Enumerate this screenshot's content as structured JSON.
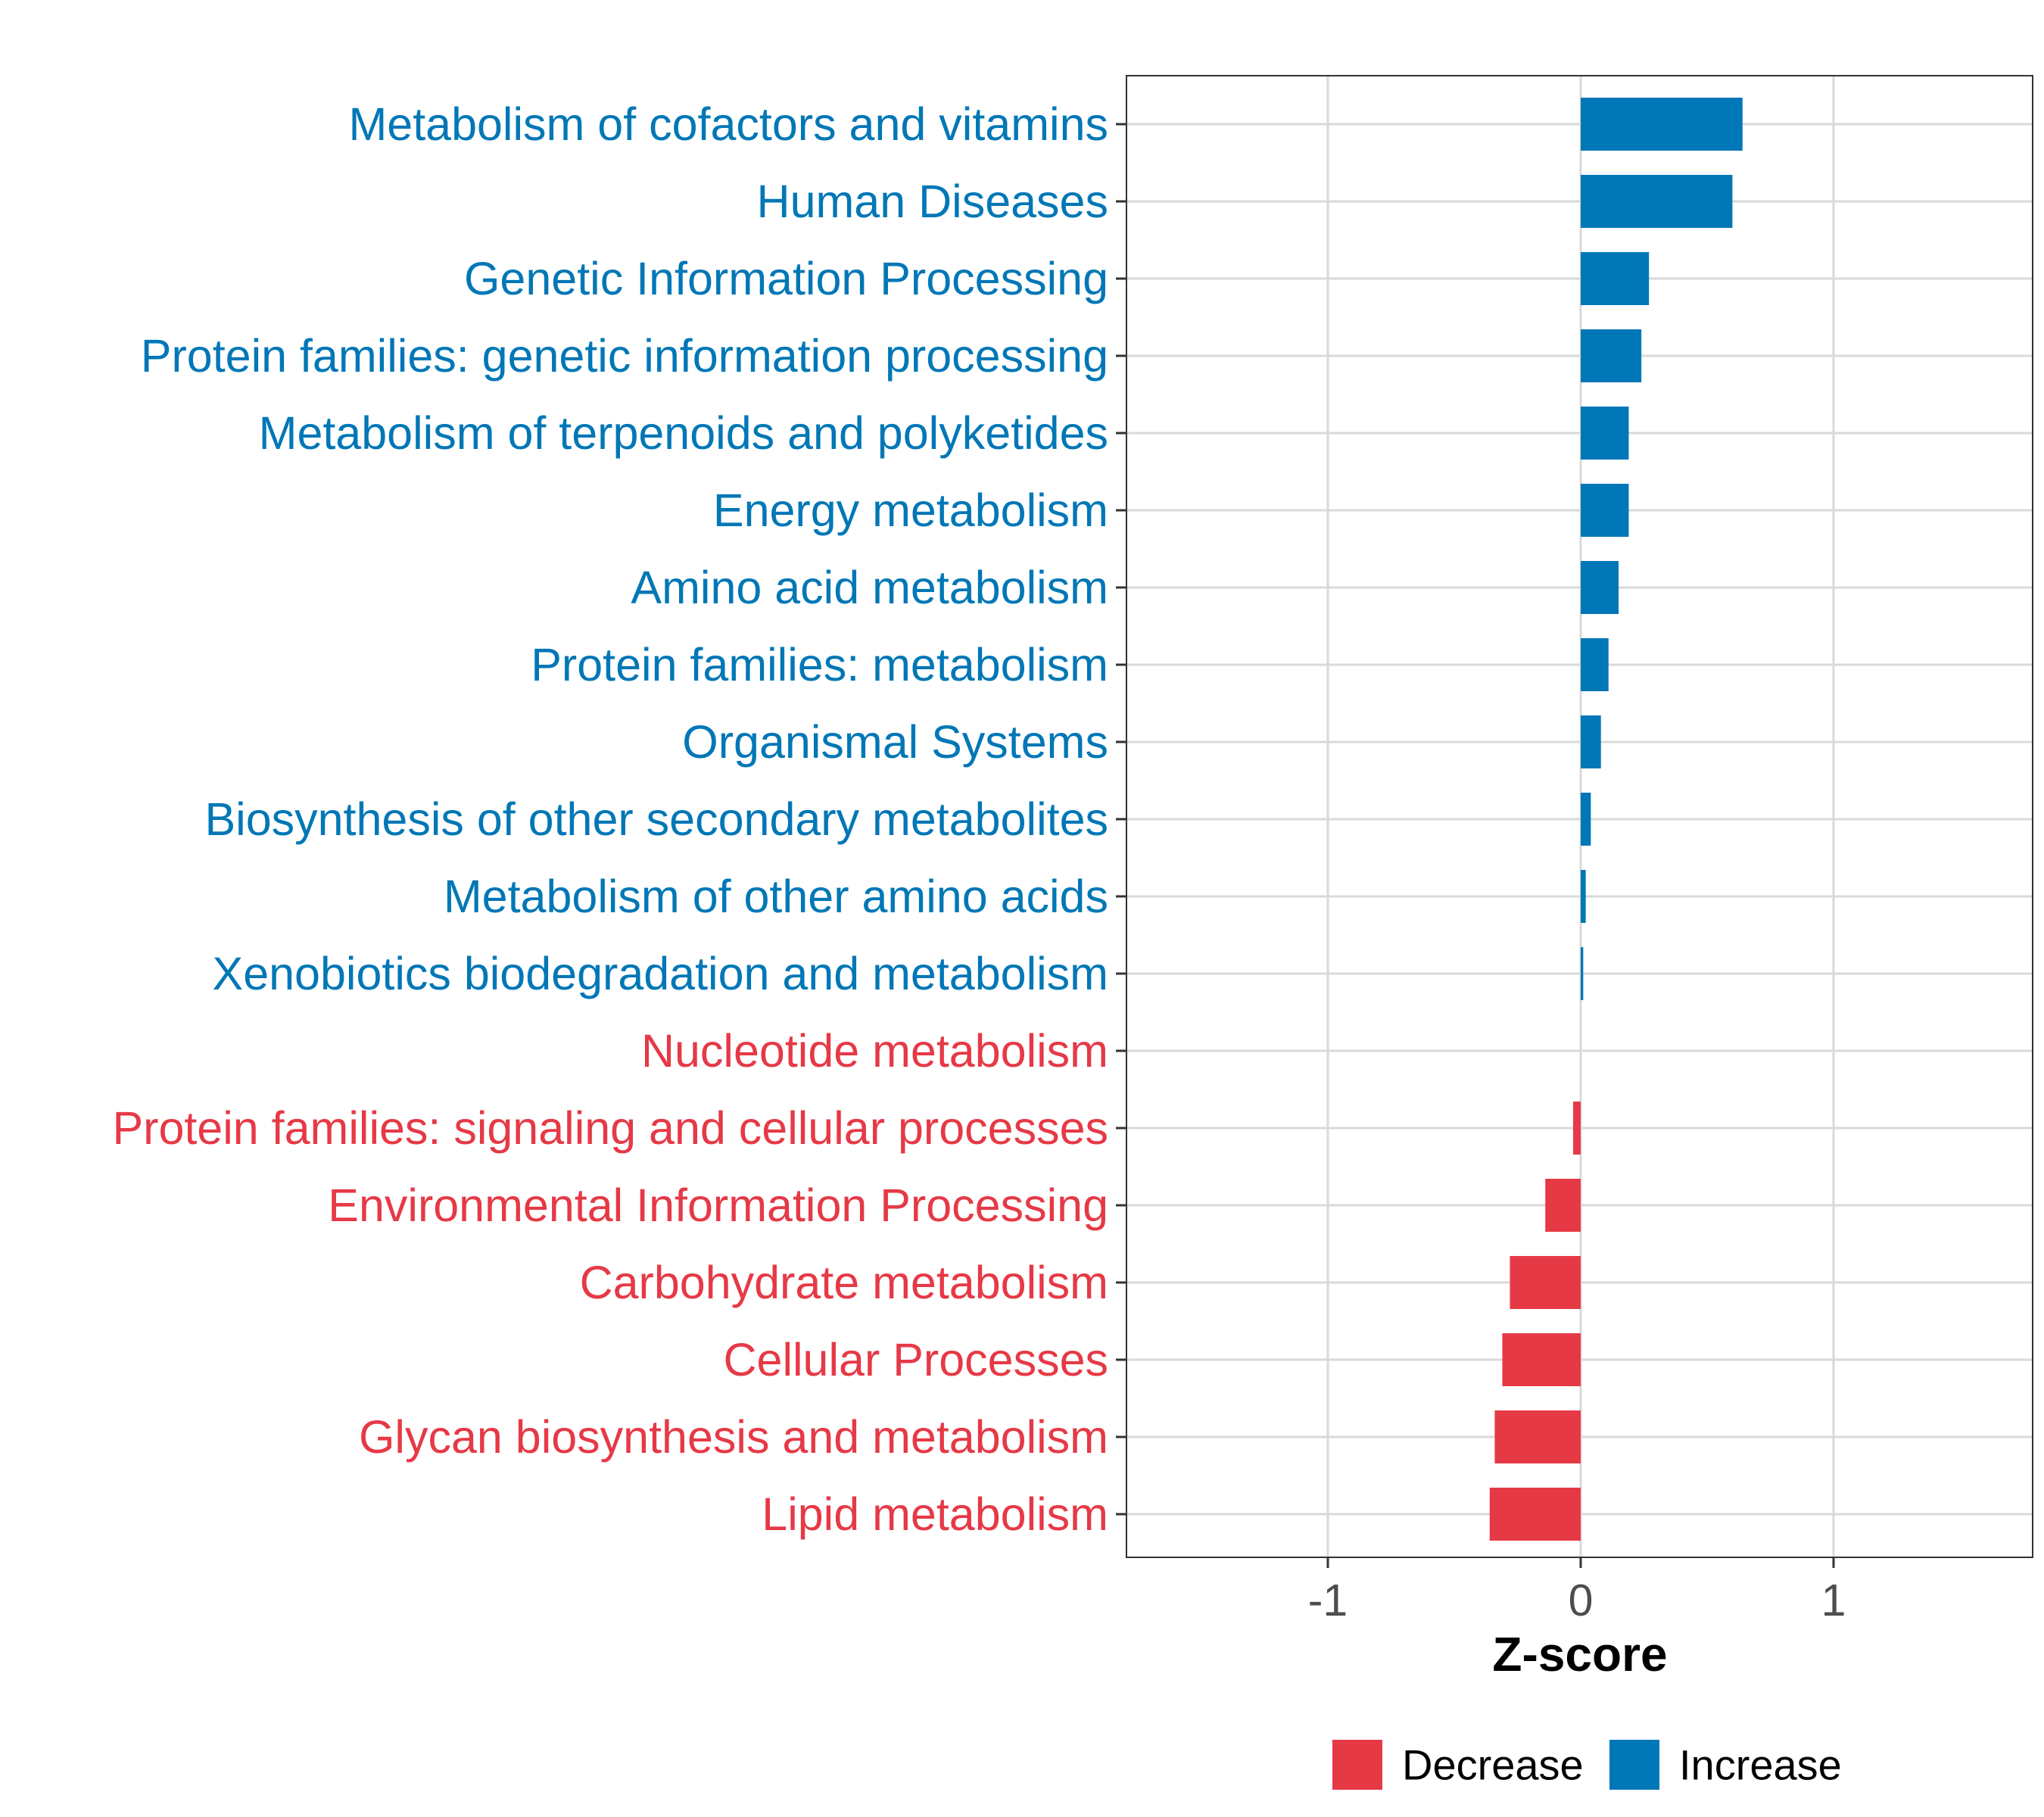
{
  "chart_data": {
    "type": "bar",
    "orientation": "horizontal",
    "title": "",
    "xlabel": "Z-score",
    "ylabel": "",
    "xlim": [
      -1.8,
      1.8
    ],
    "xticks": [
      -1,
      0,
      1
    ],
    "xtick_labels": [
      "-1",
      "0",
      "1"
    ],
    "grid": true,
    "legend_position": "bottom",
    "legend": [
      {
        "name": "Decrease",
        "color": "#E63946"
      },
      {
        "name": "Increase",
        "color": "#0077B6"
      }
    ],
    "categories": [
      "Metabolism of cofactors and vitamins",
      "Human Diseases",
      "Genetic Information Processing",
      "Protein families: genetic information processing",
      "Metabolism of terpenoids and polyketides",
      "Energy metabolism",
      "Amino acid metabolism",
      "Protein families: metabolism",
      "Organismal Systems",
      "Biosynthesis of other secondary metabolites",
      "Metabolism of other amino acids",
      "Xenobiotics biodegradation and metabolism",
      "Nucleotide metabolism",
      "Protein families: signaling and cellular processes",
      "Environmental Information Processing",
      "Carbohydrate metabolism",
      "Cellular Processes",
      "Glycan biosynthesis and metabolism",
      "Lipid metabolism"
    ],
    "values": [
      0.64,
      0.6,
      0.27,
      0.24,
      0.19,
      0.19,
      0.15,
      0.11,
      0.08,
      0.04,
      0.02,
      0.01,
      0.0,
      -0.03,
      -0.14,
      -0.28,
      -0.31,
      -0.34,
      -0.36
    ],
    "direction": [
      "Increase",
      "Increase",
      "Increase",
      "Increase",
      "Increase",
      "Increase",
      "Increase",
      "Increase",
      "Increase",
      "Increase",
      "Increase",
      "Increase",
      "Decrease",
      "Decrease",
      "Decrease",
      "Decrease",
      "Decrease",
      "Decrease",
      "Decrease"
    ]
  }
}
